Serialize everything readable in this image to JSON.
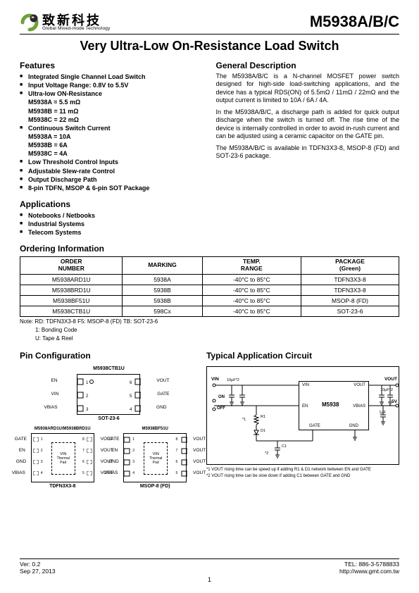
{
  "header": {
    "company_cn": "致新科技",
    "company_en": "Global Mixed-mode Technology",
    "part_number": "M5938A/B/C"
  },
  "title": "Very Ultra-Low On-Resistance Load Switch",
  "features": {
    "heading": "Features",
    "items": [
      "Integrated Single Channel Load Switch",
      "Input Voltage Range: 0.8V to 5.5V",
      "Ultra-low ON-Resistance"
    ],
    "res_sub": [
      "M5938A = 5.5 mΩ",
      "M5938B = 11 mΩ",
      "M5938C = 22 mΩ"
    ],
    "items2": [
      "Continuous Switch Current"
    ],
    "cur_sub": [
      "M5938A = 10A",
      "M5938B = 6A",
      "M5938C = 4A"
    ],
    "items3": [
      "Low Threshold Control Inputs",
      "Adjustable Slew-rate Control",
      "Output Discharge Path",
      "8-pin TDFN, MSOP & 6-pin SOT Package"
    ]
  },
  "general": {
    "heading": "General Description",
    "p1": "The M5938A/B/C is a N-channel MOSFET power switch designed for high-side load-switching applications, and the device has a typical RDS(ON) of 5.5mΩ / 11mΩ / 22mΩ and the output current is limited to 10A / 6A / 4A.",
    "p2": "In the M5938A/B/C, a discharge path is added for quick output discharge when the switch is turned off. The rise time of the device is internally controlled in order to avoid in-rush current and can be adjusted using a ceramic capacitor on the GATE pin.",
    "p3": "The M5938A/B/C is available in TDFN3X3-8, MSOP-8 (FD) and SOT-23-6 package."
  },
  "applications": {
    "heading": "Applications",
    "items": [
      "Notebooks / Netbooks",
      "Industrial Systems",
      "Telecom Systems"
    ]
  },
  "ordering": {
    "heading": "Ordering Information",
    "columns": [
      "ORDER\nNUMBER",
      "MARKING",
      "TEMP.\nRANGE",
      "PACKAGE\n(Green)"
    ],
    "rows": [
      [
        "M5938ARD1U",
        "5938A",
        "-40°C to 85°C",
        "TDFN3X3-8"
      ],
      [
        "M5938BRD1U",
        "5938B",
        "-40°C to 85°C",
        "TDFN3X3-8"
      ],
      [
        "M5938BF51U",
        "5938B",
        "-40°C to 85°C",
        "MSOP-8 (FD)"
      ],
      [
        "M5938CTB1U",
        "598Cx",
        "-40°C to 85°C",
        "SOT-23-6"
      ]
    ],
    "note1": "Note: RD: TDFN3X3-8    F5: MSOP-8 (FD)    TB: SOT-23-6",
    "note2": "1: Bonding Code",
    "note3": "U: Tape & Reel"
  },
  "pin_config": {
    "heading": "Pin Configuration",
    "sot_title": "M5938CTB1U",
    "sot_pkg": "SOT-23-6",
    "sot_pins": {
      "1": "EN",
      "2": "VIN",
      "3": "VBIAS",
      "4": "GND",
      "5": "GATE",
      "6": "VOUT"
    },
    "tdfn_title": "M5938ARD1U/M5938BRD1U",
    "tdfn_pkg": "TDFN3X3-8",
    "tdfn_pins_left": [
      "GATE",
      "EN",
      "GND",
      "VBIAS"
    ],
    "tdfn_pins_right": [
      "VOUT",
      "VOUT",
      "VOUT",
      "VOUT"
    ],
    "tdfn_center": "VIN\nThermal\nPad",
    "msop_title": "M5938BF51U",
    "msop_pkg": "MSOP-8 (FD)",
    "msop_pins_left": [
      "GATE",
      "EN",
      "GND",
      "VBIAS"
    ],
    "msop_pins_right": [
      "VOUT",
      "VOUT",
      "VOUT",
      "VOUT"
    ],
    "msop_center": "VIN\nThermal\nPad"
  },
  "app_circuit": {
    "heading": "Typical Application Circuit",
    "chip_label": "M5938",
    "vin": "VIN",
    "vout": "VOUT",
    "cap_in": "10μF*2",
    "cap_out": "10μF*2",
    "on": "ON",
    "off": "OFF",
    "en": "EN",
    "vbias": "VBIAS",
    "gate": "GATE",
    "gnd": "GND",
    "v5": "5V",
    "c1uf": "1μF",
    "r1": "R1",
    "d1": "D1",
    "c1": "C1",
    "star1": "*1",
    "star2": "*2",
    "note1": "*1 VOUT rising time can be speed up if adding R1 & D1 network between EN and GATE",
    "note2": "*2 VOUT rising time can be slow down if adding C1 between GATE and GND"
  },
  "footer": {
    "ver": "Ver: 0.2",
    "date": "Sep 27, 2013",
    "tel": "TEL: 886-3-5788833",
    "url": "http://www.gmt.com.tw",
    "page": "1"
  },
  "colors": {
    "logo_green": "#6fa03a",
    "logo_dark": "#2a2a2a"
  }
}
